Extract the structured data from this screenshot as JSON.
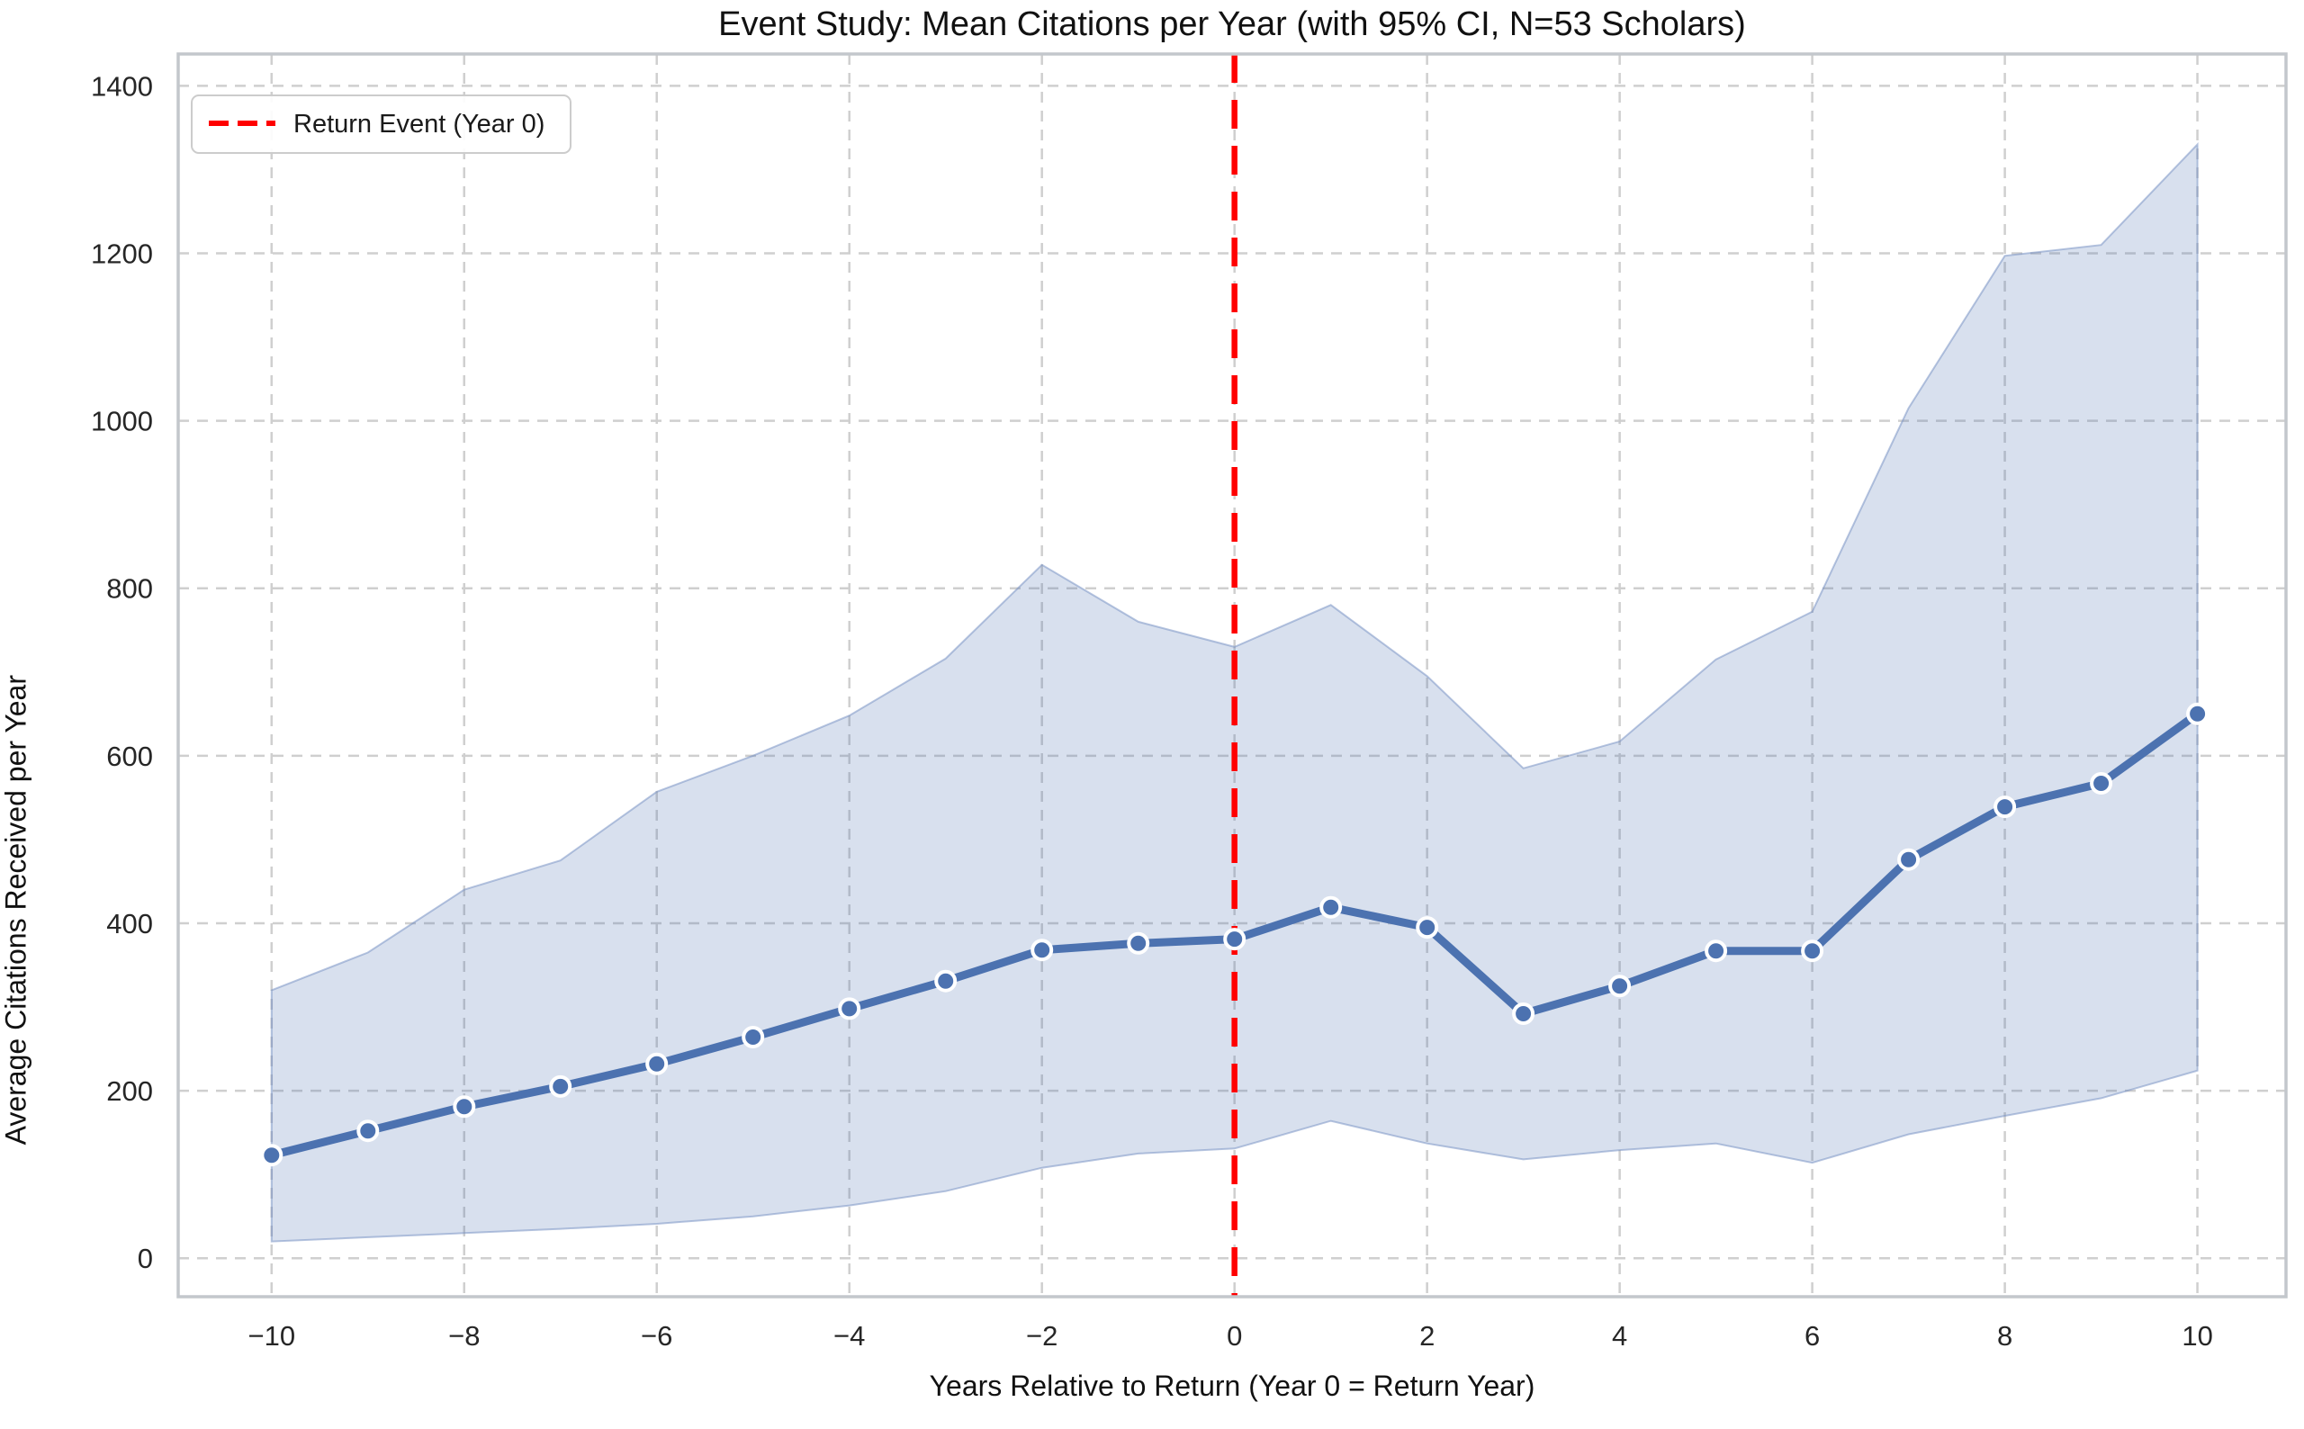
{
  "title": "Event Study: Mean Citations per Year (with 95% CI, N=53 Scholars)",
  "legend": {
    "items": [
      {
        "label": "Return Event (Year 0)",
        "color": "#ff0000",
        "style": "dashed"
      }
    ]
  },
  "colors": {
    "mean_line": "#4c72b0",
    "marker_edge": "#ffffff",
    "ci_fill": "#4c72b0",
    "ci_edge": "#7a93c4",
    "event_line": "#ff0000",
    "grid": "#cfcfcf",
    "frame": "#c3c7cc",
    "text": "#262626"
  },
  "chart_data": {
    "type": "line",
    "title": "Event Study: Mean Citations per Year (with 95% CI, N=53 Scholars)",
    "xlabel": "Years Relative to Return (Year 0 = Return Year)",
    "ylabel": "Average Citations Received per Year",
    "x": [
      -10,
      -9,
      -8,
      -7,
      -6,
      -5,
      -4,
      -3,
      -2,
      -1,
      0,
      1,
      2,
      3,
      4,
      5,
      6,
      7,
      8,
      9,
      10
    ],
    "series": [
      {
        "name": "Mean citations per year",
        "values": [
          123,
          152,
          181,
          205,
          232,
          264,
          298,
          331,
          368,
          376,
          381,
          419,
          395,
          292,
          325,
          367,
          367,
          476,
          539,
          567,
          650
        ]
      },
      {
        "name": "95% CI upper bound",
        "values": [
          320,
          365,
          440,
          475,
          557,
          600,
          648,
          716,
          828,
          760,
          730,
          780,
          695,
          585,
          617,
          715,
          772,
          1015,
          1197,
          1210,
          1330
        ]
      },
      {
        "name": "95% CI lower bound",
        "values": [
          20,
          25,
          30,
          35,
          41,
          50,
          63,
          80,
          108,
          125,
          131,
          164,
          137,
          118,
          129,
          137,
          114,
          148,
          170,
          191,
          224
        ]
      }
    ],
    "event_line_x": 0,
    "x_ticks": {
      "values": [
        -10,
        -8,
        -6,
        -4,
        -2,
        0,
        2,
        4,
        6,
        8,
        10
      ],
      "labels": [
        "−10",
        "−8",
        "−6",
        "−4",
        "−2",
        "0",
        "2",
        "4",
        "6",
        "8",
        "10"
      ]
    },
    "y_ticks": {
      "values": [
        0,
        200,
        400,
        600,
        800,
        1000,
        1200,
        1400
      ],
      "labels": [
        "0",
        "200",
        "400",
        "600",
        "800",
        "1000",
        "1200",
        "1400"
      ]
    },
    "xlim": [
      -10.97,
      10.92
    ],
    "ylim": [
      -46,
      1438
    ],
    "grid": true,
    "legend_position": "upper left"
  }
}
